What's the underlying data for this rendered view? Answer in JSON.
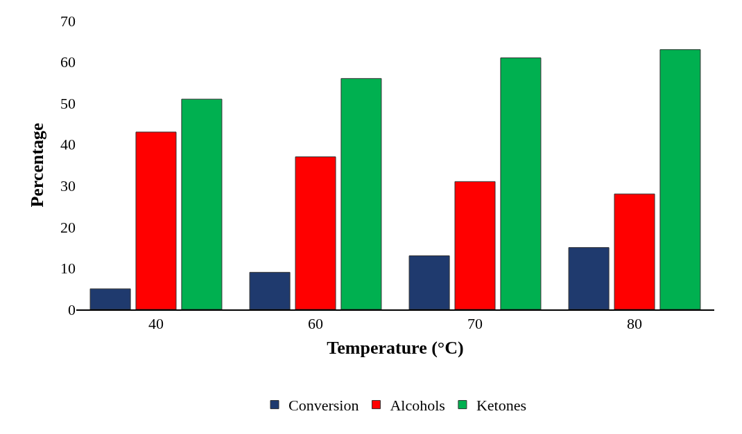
{
  "chart_data": {
    "type": "bar",
    "xlabel": "Temperature (°C)",
    "ylabel": "Percentage",
    "categories": [
      "40",
      "60",
      "70",
      "80"
    ],
    "series": [
      {
        "name": "Conversion",
        "color": "#1f3a6e",
        "values": [
          5,
          9,
          13,
          15
        ]
      },
      {
        "name": "Alcohols",
        "color": "#ff0000",
        "values": [
          43,
          37,
          31,
          28
        ]
      },
      {
        "name": "Ketones",
        "color": "#00b050",
        "values": [
          51,
          56,
          61,
          63
        ]
      }
    ],
    "ylim": [
      0,
      70
    ],
    "yticks": [
      0,
      10,
      20,
      30,
      40,
      50,
      60,
      70
    ],
    "grid": false,
    "legend": "bottom"
  }
}
